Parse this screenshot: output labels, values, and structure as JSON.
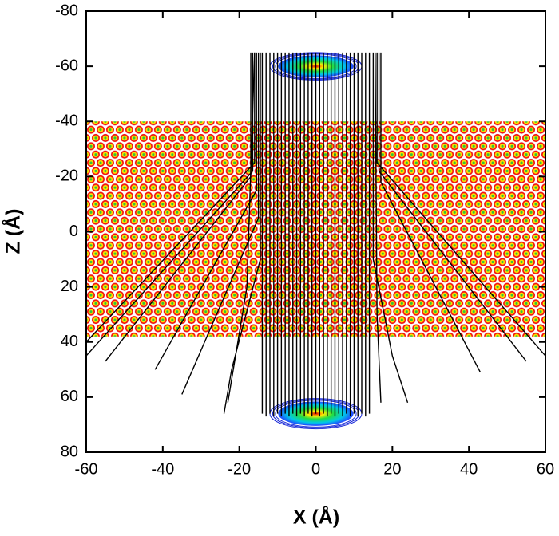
{
  "chart_data": {
    "type": "trajectory",
    "xlabel": "X (Å)",
    "ylabel": "Z (Å)",
    "xlim": [
      -60,
      60
    ],
    "ylim": [
      -80,
      80
    ],
    "y_inverted": true,
    "xticks": [
      -60,
      -40,
      -20,
      0,
      20,
      40,
      60
    ],
    "yticks": [
      -80,
      -60,
      -40,
      -20,
      0,
      20,
      40,
      60,
      80
    ],
    "lattice": {
      "xrange": [
        -60,
        60
      ],
      "zrange": [
        -40,
        38
      ],
      "dx": 2.5,
      "dz": 3
    },
    "beams": [
      {
        "x": 0,
        "z": -60,
        "rx": 12,
        "rz": 5
      },
      {
        "x": 0,
        "z": 66,
        "rx": 12,
        "rz": 5.5
      }
    ],
    "trajectories": [
      {
        "x": [
          -13,
          -13
        ],
        "z": [
          -65,
          67
        ]
      },
      {
        "x": [
          -12,
          -12
        ],
        "z": [
          -65,
          66
        ]
      },
      {
        "x": [
          -11,
          -11
        ],
        "z": [
          -65,
          67
        ]
      },
      {
        "x": [
          -10,
          -10
        ],
        "z": [
          -65,
          66
        ]
      },
      {
        "x": [
          -9,
          -9
        ],
        "z": [
          -65,
          67
        ]
      },
      {
        "x": [
          -8,
          -8
        ],
        "z": [
          -65,
          66
        ]
      },
      {
        "x": [
          -7,
          -7
        ],
        "z": [
          -65,
          67
        ]
      },
      {
        "x": [
          -6,
          -6
        ],
        "z": [
          -65,
          66
        ]
      },
      {
        "x": [
          -5,
          -5
        ],
        "z": [
          -65,
          67
        ]
      },
      {
        "x": [
          -4,
          -4
        ],
        "z": [
          -65,
          66
        ]
      },
      {
        "x": [
          -3,
          -3
        ],
        "z": [
          -65,
          67
        ]
      },
      {
        "x": [
          -2,
          -2
        ],
        "z": [
          -65,
          66
        ]
      },
      {
        "x": [
          -1,
          -1
        ],
        "z": [
          -65,
          67
        ]
      },
      {
        "x": [
          0,
          0
        ],
        "z": [
          -65,
          66
        ]
      },
      {
        "x": [
          1,
          1
        ],
        "z": [
          -65,
          67
        ]
      },
      {
        "x": [
          2,
          2
        ],
        "z": [
          -65,
          66
        ]
      },
      {
        "x": [
          3,
          3
        ],
        "z": [
          -65,
          67
        ]
      },
      {
        "x": [
          4,
          4
        ],
        "z": [
          -65,
          66
        ]
      },
      {
        "x": [
          5,
          5
        ],
        "z": [
          -65,
          67
        ]
      },
      {
        "x": [
          6,
          6
        ],
        "z": [
          -65,
          66
        ]
      },
      {
        "x": [
          7,
          7
        ],
        "z": [
          -65,
          67
        ]
      },
      {
        "x": [
          8,
          8
        ],
        "z": [
          -65,
          66
        ]
      },
      {
        "x": [
          9,
          9
        ],
        "z": [
          -65,
          67
        ]
      },
      {
        "x": [
          10,
          10
        ],
        "z": [
          -65,
          66
        ]
      },
      {
        "x": [
          11,
          11
        ],
        "z": [
          -65,
          67
        ]
      },
      {
        "x": [
          12,
          12
        ],
        "z": [
          -65,
          66
        ]
      },
      {
        "x": [
          13,
          13
        ],
        "z": [
          -65,
          67
        ]
      },
      {
        "x": [
          14,
          14
        ],
        "z": [
          -65,
          66
        ]
      },
      {
        "x": [
          -14,
          -14
        ],
        "z": [
          -65,
          66
        ]
      },
      {
        "x": [
          -16,
          -16,
          -60
        ],
        "z": [
          -65,
          -25,
          40
        ]
      },
      {
        "x": [
          -16.5,
          -16.5,
          -60
        ],
        "z": [
          -65,
          -22,
          45
        ]
      },
      {
        "x": [
          -17,
          -17,
          -55
        ],
        "z": [
          -65,
          -20,
          47
        ]
      },
      {
        "x": [
          -15.5,
          -15.5,
          -42
        ],
        "z": [
          -65,
          -15,
          50
        ]
      },
      {
        "x": [
          -15,
          -15,
          -35
        ],
        "z": [
          -65,
          -5,
          59
        ]
      },
      {
        "x": [
          -14.5,
          -14.5,
          -22,
          -24
        ],
        "z": [
          -65,
          10,
          50,
          66
        ]
      },
      {
        "x": [
          -16,
          -18,
          -23
        ],
        "z": [
          -65,
          20,
          62
        ]
      },
      {
        "x": [
          16,
          16,
          60
        ],
        "z": [
          -65,
          -25,
          45
        ]
      },
      {
        "x": [
          16.5,
          16.5,
          55
        ],
        "z": [
          -65,
          -22,
          47
        ]
      },
      {
        "x": [
          17,
          17,
          43
        ],
        "z": [
          -65,
          -18,
          51
        ]
      },
      {
        "x": [
          15,
          15,
          20,
          24
        ],
        "z": [
          -65,
          10,
          45,
          62
        ]
      },
      {
        "x": [
          15.5,
          16,
          17
        ],
        "z": [
          -65,
          30,
          62
        ]
      }
    ]
  }
}
